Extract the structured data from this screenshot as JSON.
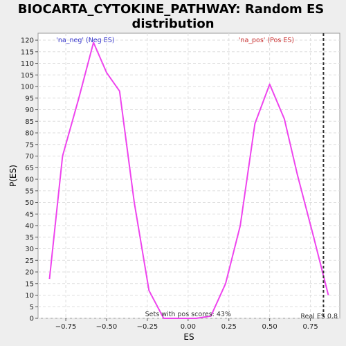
{
  "chart_data": {
    "type": "line",
    "title_lines": [
      "BIOCARTA_CYTOKINE_PATHWAY: Random ES",
      "distribution"
    ],
    "xlabel": "ES",
    "ylabel": "P(ES)",
    "xlim": [
      -0.92,
      0.93
    ],
    "ylim": [
      0,
      123
    ],
    "xticks": [
      -0.75,
      -0.5,
      -0.25,
      0.0,
      0.25,
      0.5,
      0.75
    ],
    "xtick_labels": [
      "−0.75",
      "−0.50",
      "−0.25",
      "0.00",
      "0.25",
      "0.50",
      "0.75"
    ],
    "yticks": [
      0,
      5,
      10,
      15,
      20,
      25,
      30,
      35,
      40,
      45,
      50,
      55,
      60,
      65,
      70,
      75,
      80,
      85,
      90,
      95,
      100,
      105,
      110,
      115,
      120
    ],
    "grid": true,
    "series": [
      {
        "color": "#ee44ee",
        "x": [
          -0.85,
          -0.77,
          -0.67,
          -0.58,
          -0.5,
          -0.42,
          -0.33,
          -0.24,
          -0.15,
          -0.06,
          0.05,
          0.14,
          0.23,
          0.32,
          0.41,
          0.5,
          0.59,
          0.67,
          0.77,
          0.86
        ],
        "y": [
          17,
          70,
          95,
          119,
          106,
          98,
          50,
          12,
          0,
          0,
          0,
          1,
          15,
          40,
          84,
          101,
          86,
          62,
          35,
          10
        ]
      }
    ],
    "annotations": {
      "neg_label": "'na_neg' (Neg ES)",
      "neg_color": "#3333cc",
      "pos_label": "'na_pos' (Pos ES)",
      "pos_color": "#cc3333",
      "pos_scores_text": "Sets with pos scores: 43%",
      "real_es_value": 0.83,
      "real_es_text": "Real ES 0.8"
    }
  }
}
